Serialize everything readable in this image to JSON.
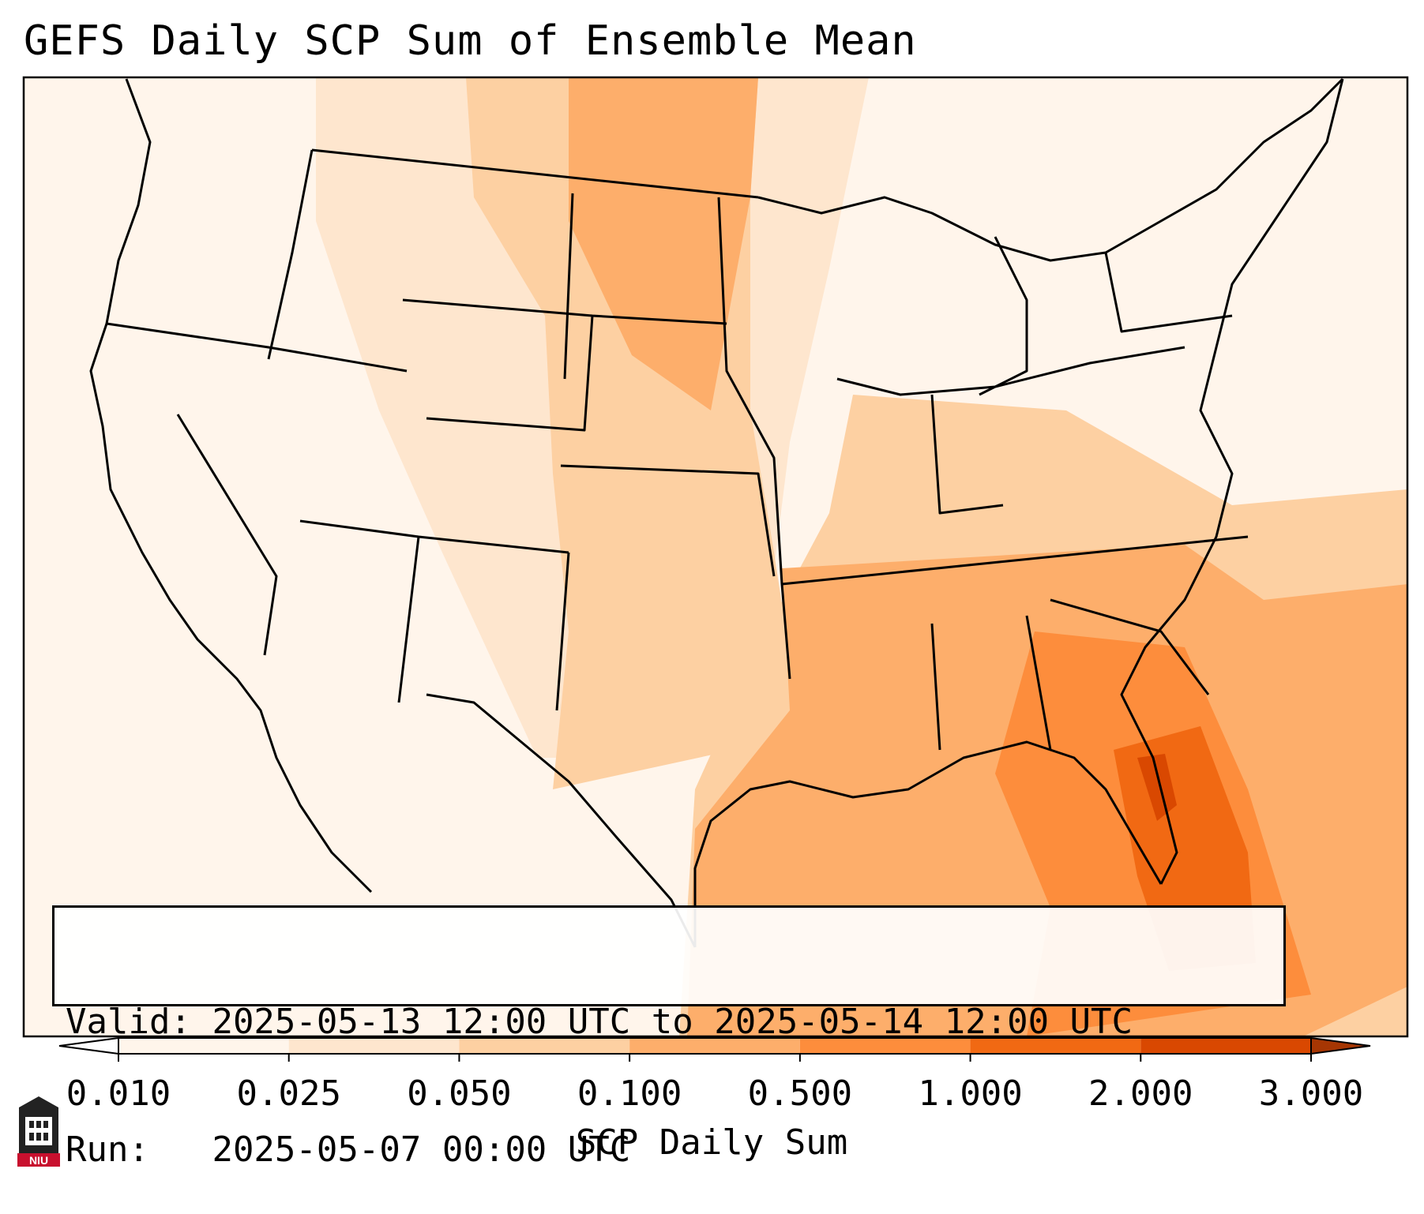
{
  "title": "GEFS Daily SCP Sum of Ensemble Mean",
  "info": {
    "valid_label": "Valid:",
    "valid_value": "2025-05-13 12:00 UTC to 2025-05-14 12:00 UTC",
    "run_label": "Run:",
    "run_value": "2025-05-07 00:00 UTC"
  },
  "colorbar": {
    "label": "SCP Daily Sum",
    "ticks": [
      "0.010",
      "0.025",
      "0.050",
      "0.100",
      "0.500",
      "1.000",
      "2.000",
      "3.000"
    ],
    "colors": [
      "#fff5eb",
      "#fee6ce",
      "#fdd0a2",
      "#fdae6b",
      "#fd8d3c",
      "#f16913",
      "#d94801"
    ],
    "under_color": "#ffffff",
    "over_color": "#a63603"
  },
  "logo": {
    "text": "NIU"
  }
}
